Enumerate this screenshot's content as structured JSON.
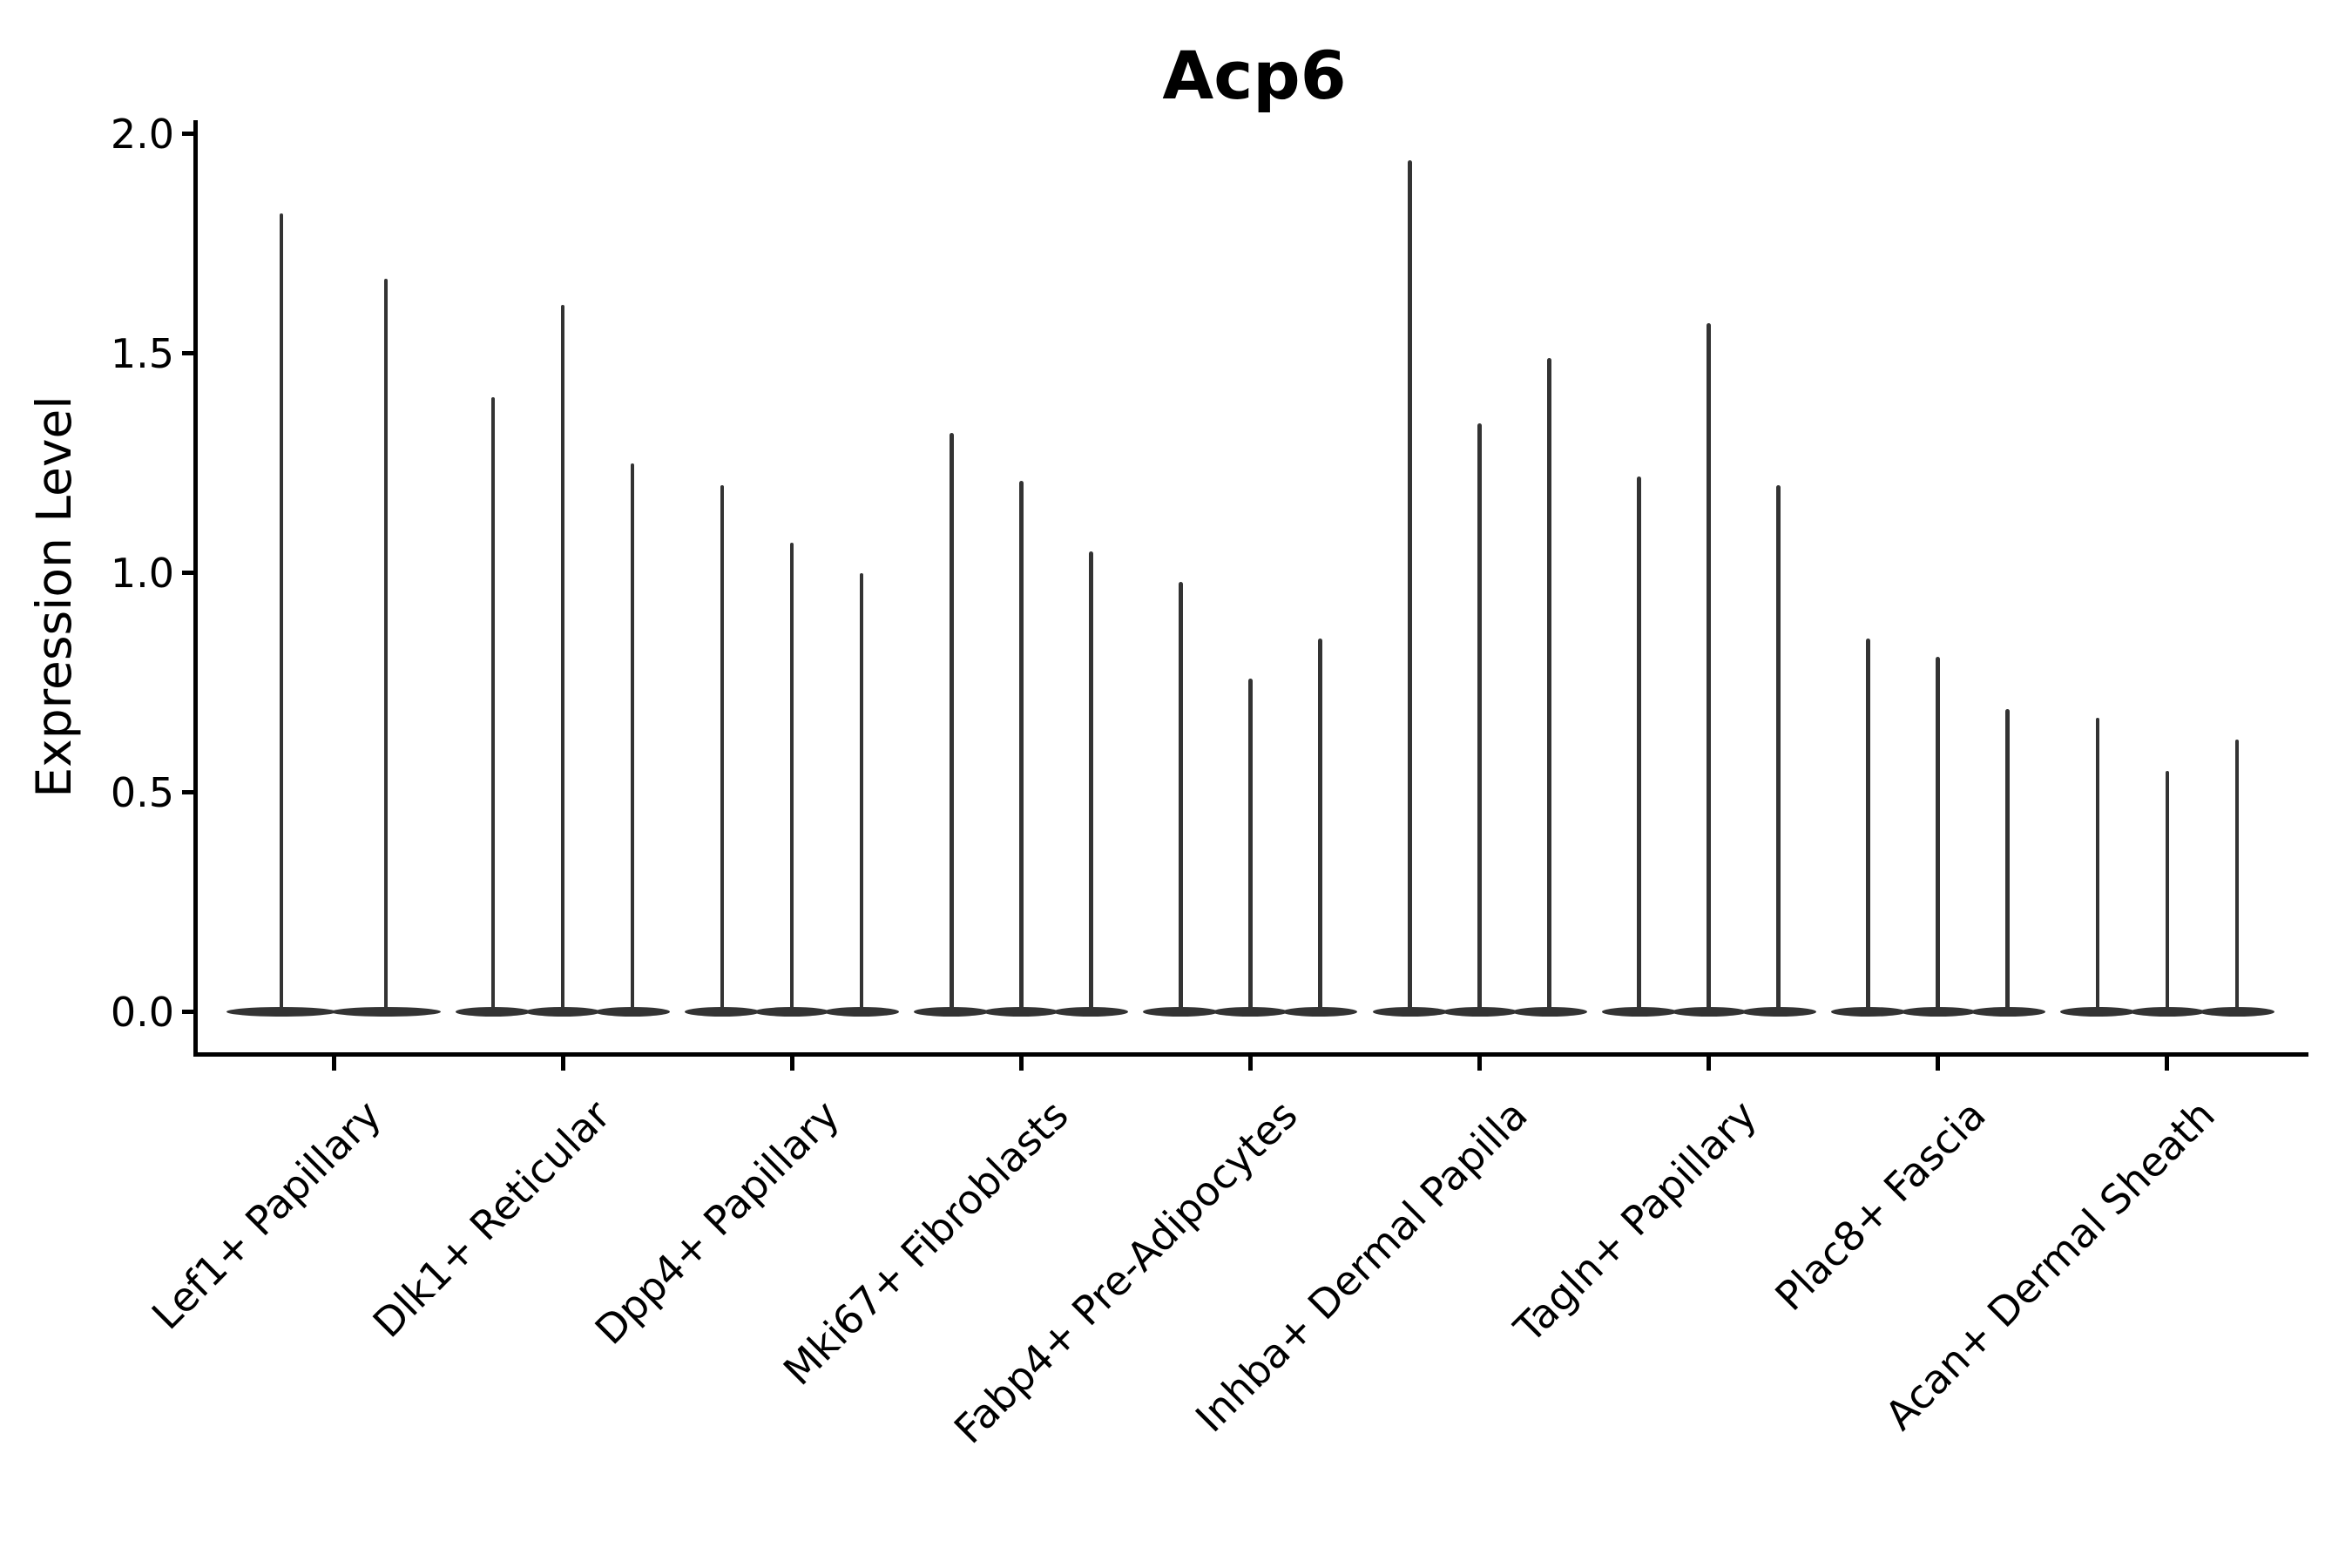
{
  "chart_data": {
    "type": "violin",
    "title": "Acp6",
    "xlabel": "",
    "ylabel": "Expression Level",
    "ytick_labels": [
      "0.0",
      "0.5",
      "1.0",
      "1.5",
      "2.0"
    ],
    "ytick_values": [
      0.0,
      0.5,
      1.0,
      1.5,
      2.0
    ],
    "ylim": [
      -0.096,
      2.032
    ],
    "grid": false,
    "legend_position": "none",
    "violin_color": "#333333",
    "axis_color": "#000000",
    "categories": [
      "Lef1+ Papillary",
      "Dlk1+ Reticular",
      "Dpp4+ Papillary",
      "Mki67+ Fibroblasts",
      "Fabp4+ Pre-Adipocytes",
      "Inhba+ Dermal Papilla",
      "Tagln+ Papillary",
      "Plac8+ Fascia",
      "Acan+ Dermal Sheath"
    ],
    "groups": [
      {
        "category": "Lef1+ Papillary",
        "spike_maxima": [
          1.82,
          1.67
        ]
      },
      {
        "category": "Dlk1+ Reticular",
        "spike_maxima": [
          1.4,
          1.61,
          1.25
        ]
      },
      {
        "category": "Dpp4+ Papillary",
        "spike_maxima": [
          1.2,
          1.07,
          1.0
        ]
      },
      {
        "category": "Mki67+ Fibroblasts",
        "spike_maxima": [
          1.32,
          1.21,
          1.05
        ]
      },
      {
        "category": "Fabp4+ Pre-Adipocytes",
        "spike_maxima": [
          0.98,
          0.76,
          0.85
        ]
      },
      {
        "category": "Inhba+ Dermal Papilla",
        "spike_maxima": [
          1.94,
          1.34,
          1.49
        ]
      },
      {
        "category": "Tagln+ Papillary",
        "spike_maxima": [
          1.22,
          1.57,
          1.2
        ]
      },
      {
        "category": "Plac8+ Fascia",
        "spike_maxima": [
          0.85,
          0.81,
          0.69
        ]
      },
      {
        "category": "Acan+ Dermal Sheath",
        "spike_maxima": [
          0.67,
          0.55,
          0.62
        ]
      }
    ],
    "description": "Violin plot of Acp6 expression; each cluster shows thin violins with density concentrated at 0 and a single spike reaching the maximum expression value."
  }
}
